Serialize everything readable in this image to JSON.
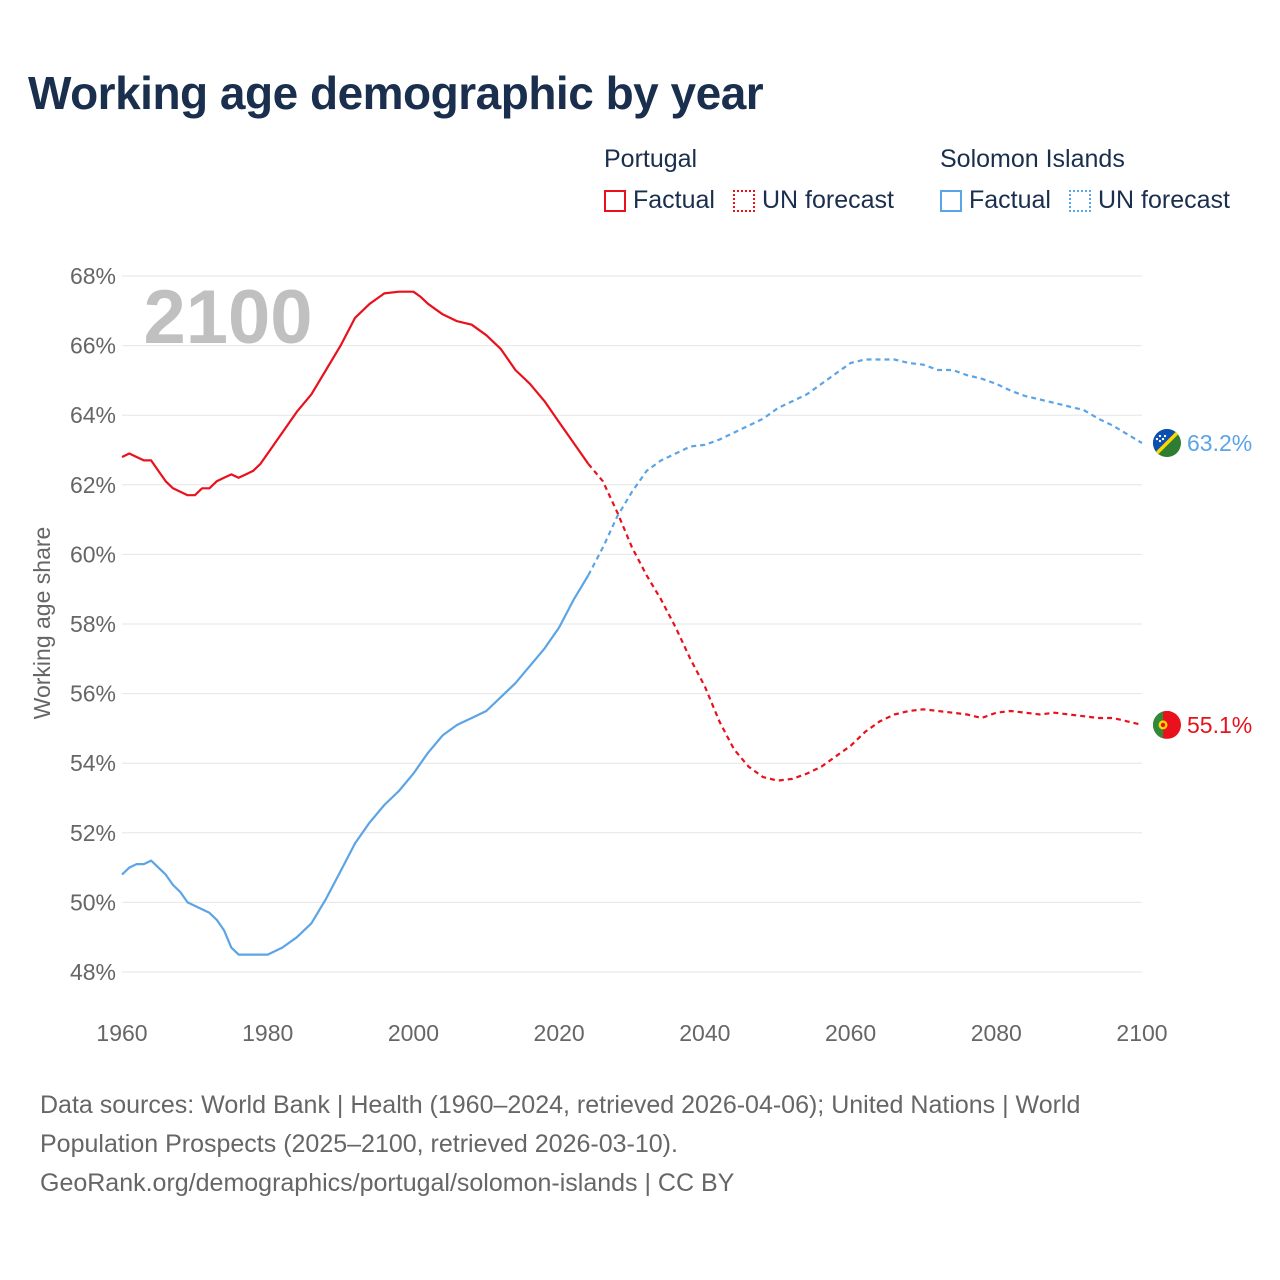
{
  "title": "Working age demographic by year",
  "year_watermark": "2100",
  "legend": [
    {
      "country": "Portugal",
      "color": "#e8111c",
      "items": [
        {
          "label": "Factual",
          "style": "solid"
        },
        {
          "label": "UN forecast",
          "style": "dotted"
        }
      ]
    },
    {
      "country": "Solomon Islands",
      "color": "#5ba4e6",
      "items": [
        {
          "label": "Factual",
          "style": "solid"
        },
        {
          "label": "UN forecast",
          "style": "dotted"
        }
      ]
    }
  ],
  "chart_data": {
    "type": "line",
    "ylabel": "Working age share",
    "xlabel": "",
    "xlim": [
      1960,
      2100
    ],
    "ylim": [
      48,
      68
    ],
    "xticks": [
      1960,
      1980,
      2000,
      2020,
      2040,
      2060,
      2080,
      2100
    ],
    "yticks": [
      48,
      50,
      52,
      54,
      56,
      58,
      60,
      62,
      64,
      66,
      68
    ],
    "y_unit": "%",
    "factual_end_year": 2024,
    "series": [
      {
        "name": "Portugal",
        "color": "#e8111c",
        "flag": "portugal-flag",
        "end_label": "55.1%",
        "points": [
          [
            1960,
            62.8
          ],
          [
            1961,
            62.9
          ],
          [
            1962,
            62.8
          ],
          [
            1963,
            62.7
          ],
          [
            1964,
            62.7
          ],
          [
            1965,
            62.4
          ],
          [
            1966,
            62.1
          ],
          [
            1967,
            61.9
          ],
          [
            1968,
            61.8
          ],
          [
            1969,
            61.7
          ],
          [
            1970,
            61.7
          ],
          [
            1971,
            61.9
          ],
          [
            1972,
            61.9
          ],
          [
            1973,
            62.1
          ],
          [
            1974,
            62.2
          ],
          [
            1975,
            62.3
          ],
          [
            1976,
            62.2
          ],
          [
            1977,
            62.3
          ],
          [
            1978,
            62.4
          ],
          [
            1979,
            62.6
          ],
          [
            1980,
            62.9
          ],
          [
            1982,
            63.5
          ],
          [
            1984,
            64.1
          ],
          [
            1986,
            64.6
          ],
          [
            1988,
            65.3
          ],
          [
            1990,
            66.0
          ],
          [
            1992,
            66.8
          ],
          [
            1994,
            67.2
          ],
          [
            1996,
            67.5
          ],
          [
            1998,
            67.55
          ],
          [
            2000,
            67.55
          ],
          [
            2001,
            67.4
          ],
          [
            2002,
            67.2
          ],
          [
            2004,
            66.9
          ],
          [
            2006,
            66.7
          ],
          [
            2008,
            66.6
          ],
          [
            2010,
            66.3
          ],
          [
            2012,
            65.9
          ],
          [
            2014,
            65.3
          ],
          [
            2016,
            64.9
          ],
          [
            2018,
            64.4
          ],
          [
            2020,
            63.8
          ],
          [
            2022,
            63.2
          ],
          [
            2024,
            62.6
          ],
          [
            2026,
            62.1
          ],
          [
            2028,
            61.2
          ],
          [
            2030,
            60.2
          ],
          [
            2032,
            59.4
          ],
          [
            2034,
            58.7
          ],
          [
            2036,
            57.9
          ],
          [
            2038,
            57.0
          ],
          [
            2040,
            56.2
          ],
          [
            2042,
            55.2
          ],
          [
            2044,
            54.4
          ],
          [
            2046,
            53.9
          ],
          [
            2048,
            53.6
          ],
          [
            2050,
            53.5
          ],
          [
            2052,
            53.55
          ],
          [
            2054,
            53.7
          ],
          [
            2056,
            53.9
          ],
          [
            2058,
            54.2
          ],
          [
            2060,
            54.5
          ],
          [
            2062,
            54.9
          ],
          [
            2064,
            55.2
          ],
          [
            2066,
            55.4
          ],
          [
            2068,
            55.5
          ],
          [
            2070,
            55.55
          ],
          [
            2072,
            55.5
          ],
          [
            2074,
            55.45
          ],
          [
            2076,
            55.4
          ],
          [
            2078,
            55.3
          ],
          [
            2080,
            55.45
          ],
          [
            2082,
            55.5
          ],
          [
            2084,
            55.45
          ],
          [
            2086,
            55.4
          ],
          [
            2088,
            55.45
          ],
          [
            2090,
            55.4
          ],
          [
            2092,
            55.35
          ],
          [
            2094,
            55.3
          ],
          [
            2096,
            55.3
          ],
          [
            2098,
            55.2
          ],
          [
            2100,
            55.1
          ]
        ]
      },
      {
        "name": "Solomon Islands",
        "color": "#5ba4e6",
        "flag": "solomon-islands-flag",
        "end_label": "63.2%",
        "points": [
          [
            1960,
            50.8
          ],
          [
            1961,
            51.0
          ],
          [
            1962,
            51.1
          ],
          [
            1963,
            51.1
          ],
          [
            1964,
            51.2
          ],
          [
            1965,
            51.0
          ],
          [
            1966,
            50.8
          ],
          [
            1967,
            50.5
          ],
          [
            1968,
            50.3
          ],
          [
            1969,
            50.0
          ],
          [
            1970,
            49.9
          ],
          [
            1972,
            49.7
          ],
          [
            1973,
            49.5
          ],
          [
            1974,
            49.2
          ],
          [
            1975,
            48.7
          ],
          [
            1976,
            48.5
          ],
          [
            1978,
            48.5
          ],
          [
            1980,
            48.5
          ],
          [
            1982,
            48.7
          ],
          [
            1984,
            49.0
          ],
          [
            1986,
            49.4
          ],
          [
            1988,
            50.1
          ],
          [
            1990,
            50.9
          ],
          [
            1992,
            51.7
          ],
          [
            1994,
            52.3
          ],
          [
            1996,
            52.8
          ],
          [
            1998,
            53.2
          ],
          [
            2000,
            53.7
          ],
          [
            2002,
            54.3
          ],
          [
            2004,
            54.8
          ],
          [
            2006,
            55.1
          ],
          [
            2008,
            55.3
          ],
          [
            2009,
            55.4
          ],
          [
            2010,
            55.5
          ],
          [
            2012,
            55.9
          ],
          [
            2014,
            56.3
          ],
          [
            2016,
            56.8
          ],
          [
            2018,
            57.3
          ],
          [
            2020,
            57.9
          ],
          [
            2022,
            58.7
          ],
          [
            2024,
            59.4
          ],
          [
            2026,
            60.2
          ],
          [
            2028,
            61.1
          ],
          [
            2030,
            61.8
          ],
          [
            2032,
            62.4
          ],
          [
            2034,
            62.7
          ],
          [
            2036,
            62.9
          ],
          [
            2038,
            63.1
          ],
          [
            2040,
            63.15
          ],
          [
            2042,
            63.3
          ],
          [
            2044,
            63.5
          ],
          [
            2046,
            63.7
          ],
          [
            2048,
            63.9
          ],
          [
            2050,
            64.2
          ],
          [
            2052,
            64.4
          ],
          [
            2054,
            64.6
          ],
          [
            2056,
            64.9
          ],
          [
            2058,
            65.2
          ],
          [
            2060,
            65.5
          ],
          [
            2062,
            65.6
          ],
          [
            2064,
            65.6
          ],
          [
            2066,
            65.6
          ],
          [
            2068,
            65.5
          ],
          [
            2070,
            65.45
          ],
          [
            2072,
            65.3
          ],
          [
            2074,
            65.3
          ],
          [
            2076,
            65.15
          ],
          [
            2078,
            65.05
          ],
          [
            2080,
            64.9
          ],
          [
            2082,
            64.7
          ],
          [
            2084,
            64.55
          ],
          [
            2086,
            64.45
          ],
          [
            2088,
            64.35
          ],
          [
            2090,
            64.25
          ],
          [
            2092,
            64.15
          ],
          [
            2094,
            63.9
          ],
          [
            2096,
            63.7
          ],
          [
            2098,
            63.45
          ],
          [
            2100,
            63.2
          ]
        ]
      }
    ]
  },
  "sources_lines": [
    "Data sources: World Bank | Health (1960–2024, retrieved 2026-04-06); United Nations | World",
    "Population Prospects (2025–2100, retrieved 2026-03-10).",
    "GeoRank.org/demographics/portugal/solomon-islands | CC BY"
  ]
}
